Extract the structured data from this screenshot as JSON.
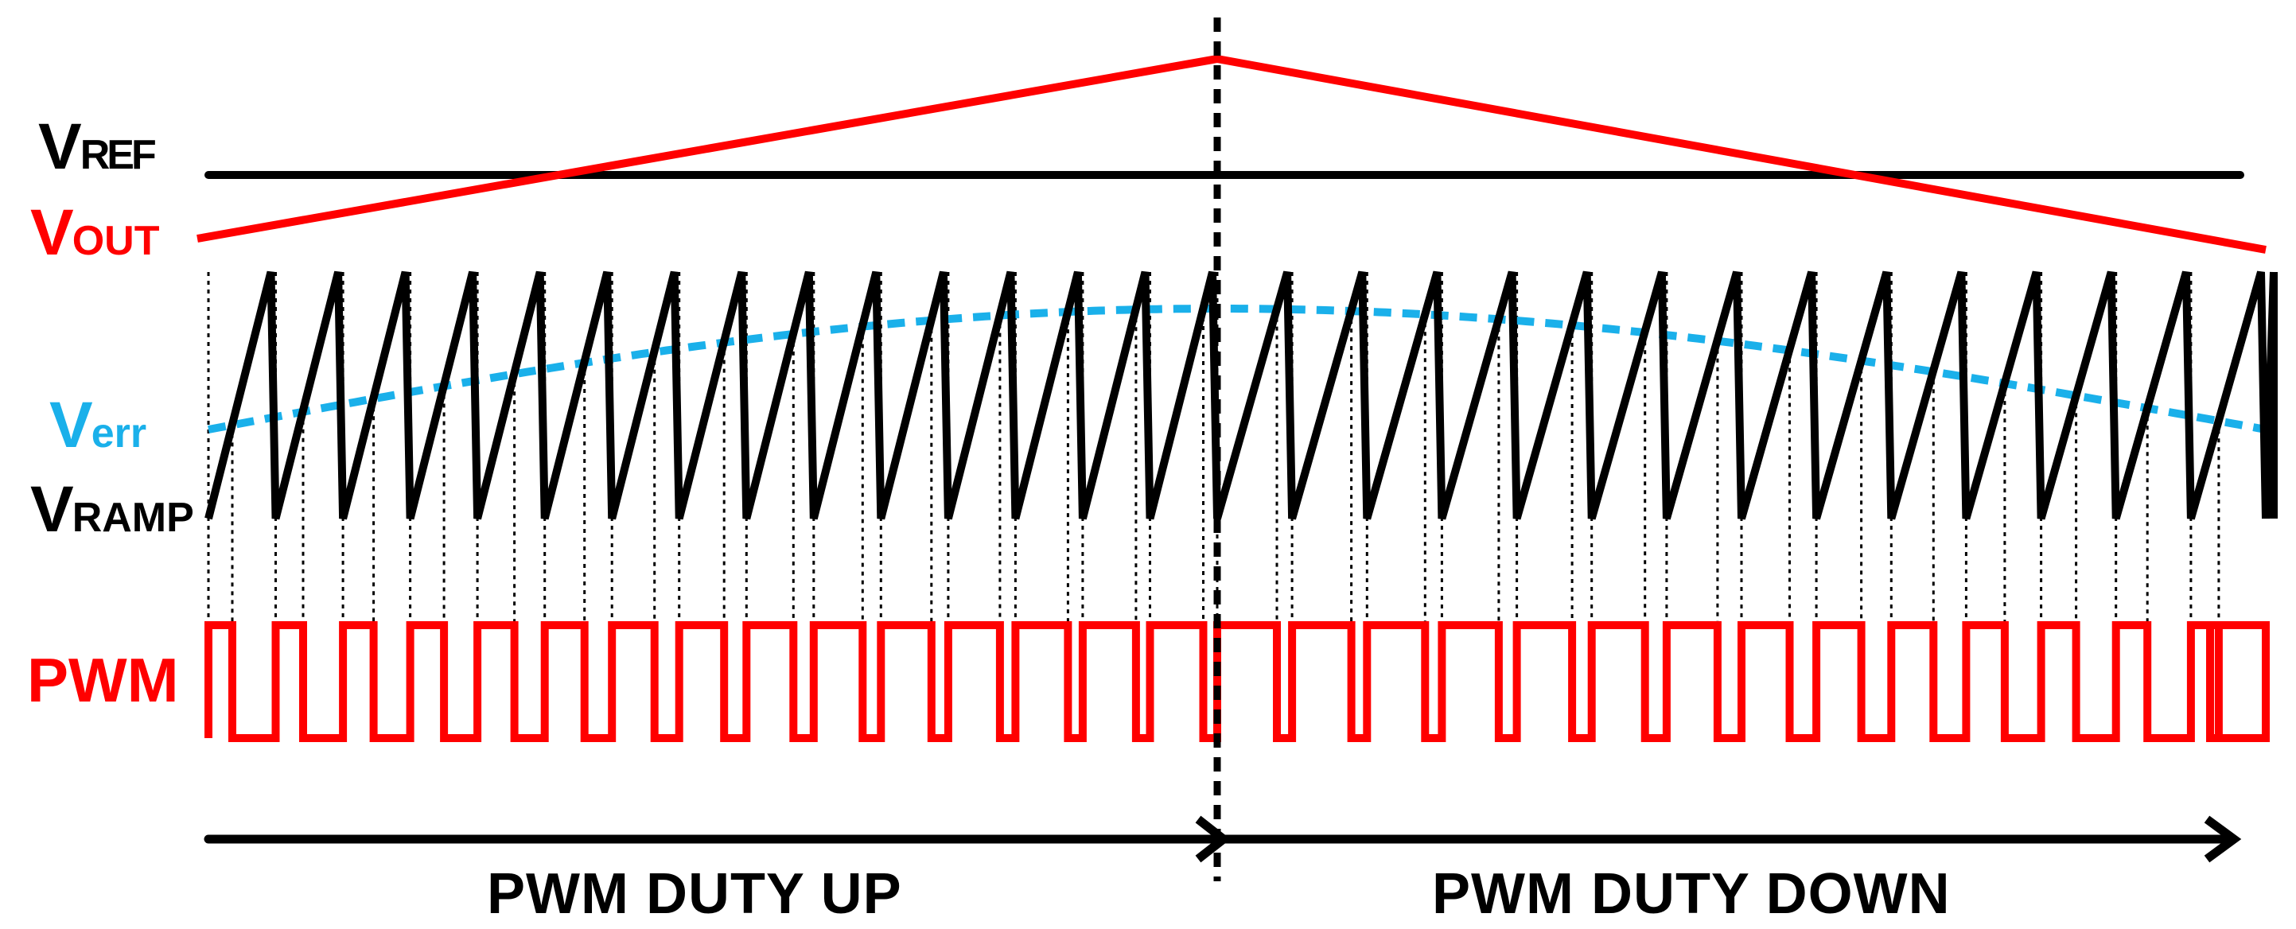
{
  "labels": {
    "vref": {
      "main": "V",
      "sub": "REF"
    },
    "vout": {
      "main": "V",
      "sub": "OUT"
    },
    "verr": {
      "main": "V",
      "sub": "err"
    },
    "vramp": {
      "main": "V",
      "sub": "RAMP"
    },
    "pwm": "PWM"
  },
  "captions": {
    "duty_up": "PWM  DUTY UP",
    "duty_down": "PWM  DUTY DOWN"
  },
  "colors": {
    "vref": "#000000",
    "vout": "#ff0000",
    "verr": "#1ab0ea",
    "vramp": "#000000",
    "pwm": "#ff0000",
    "arrow": "#000000",
    "divider": "#000000"
  }
}
